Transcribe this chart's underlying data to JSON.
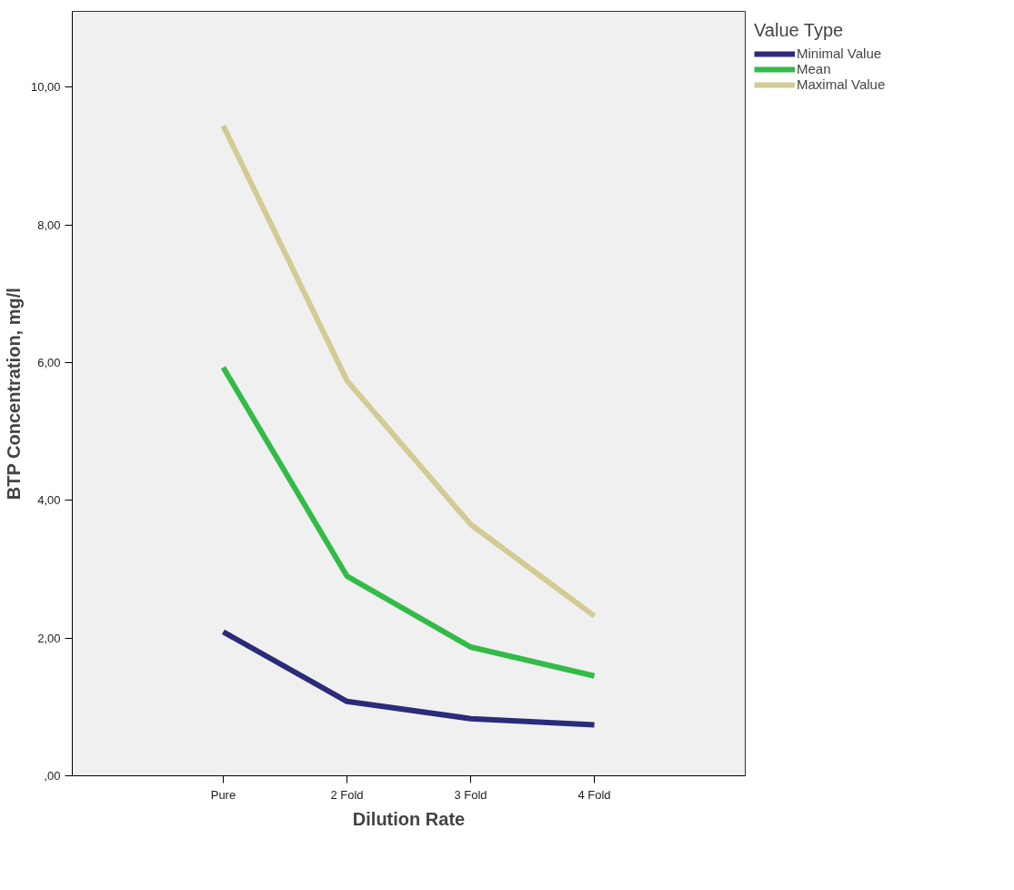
{
  "chart_data": {
    "type": "line",
    "xlabel": "Dilution Rate",
    "ylabel": "BTP Concentration, mg/l",
    "legend_title": "Value Type",
    "categories": [
      "Pure",
      "2 Fold",
      "3 Fold",
      "4 Fold"
    ],
    "series": [
      {
        "name": "Minimal Value",
        "color": "#2b2b7a",
        "values": [
          2.09,
          1.08,
          0.83,
          0.74
        ]
      },
      {
        "name": "Mean",
        "color": "#33bb48",
        "values": [
          5.93,
          2.9,
          1.87,
          1.45
        ]
      },
      {
        "name": "Maximal Value",
        "color": "#d3cb94",
        "values": [
          9.44,
          5.74,
          3.65,
          2.32
        ]
      }
    ],
    "ylim": [
      0,
      11.1
    ],
    "yticks": [
      {
        "value": 0,
        "label": ",00"
      },
      {
        "value": 2,
        "label": "2,00"
      },
      {
        "value": 4,
        "label": "4,00"
      },
      {
        "value": 6,
        "label": "6,00"
      },
      {
        "value": 8,
        "label": "8,00"
      },
      {
        "value": 10,
        "label": "10,00"
      }
    ],
    "grid": false,
    "legend": "right",
    "marker": "none",
    "line_style": "solid"
  }
}
